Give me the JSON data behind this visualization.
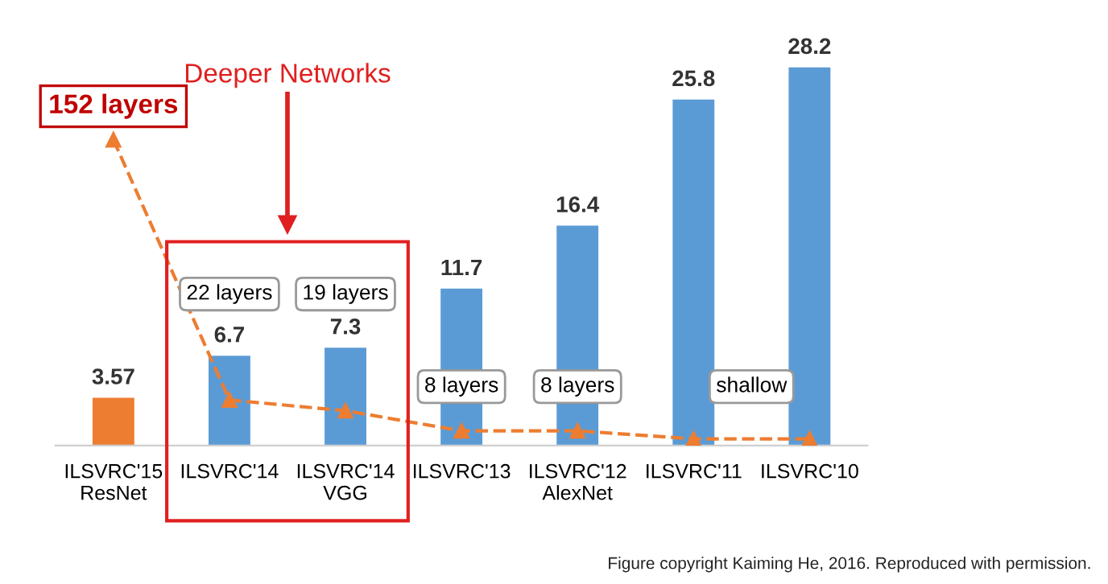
{
  "chart_data": {
    "type": "bar",
    "categories": [
      "ILSVRC'15\nResNet",
      "ILSVRC'14",
      "ILSVRC'14\nVGG",
      "ILSVRC'13",
      "ILSVRC'12\nAlexNet",
      "ILSVRC'11",
      "ILSVRC'10"
    ],
    "series": [
      {
        "colors": [
          "#ed7d31",
          "#5b9bd5",
          "#5b9bd5",
          "#5b9bd5",
          "#5b9bd5",
          "#5b9bd5",
          "#5b9bd5"
        ],
        "values": [
          3.57,
          6.7,
          7.3,
          11.7,
          16.4,
          25.8,
          28.2
        ],
        "value_labels": [
          "3.57",
          "6.7",
          "7.3",
          "11.7",
          "16.4",
          "25.8",
          "28.2"
        ]
      },
      {
        "type": "line",
        "color": "#ed7d31",
        "line_style": "dashed",
        "marker": "triangle",
        "values": [
          22.8,
          3.4,
          2.6,
          1.1,
          1.1,
          0.5,
          0.5
        ]
      }
    ],
    "tick_labels": "x",
    "grid": false,
    "annotations": [
      "152 layers",
      "Deeper Networks",
      "22 layers",
      "19 layers",
      "8 layers",
      "8 layers",
      "shallow",
      "Figure copyright Kaiming He, 2016. Reproduced with permission."
    ]
  }
}
